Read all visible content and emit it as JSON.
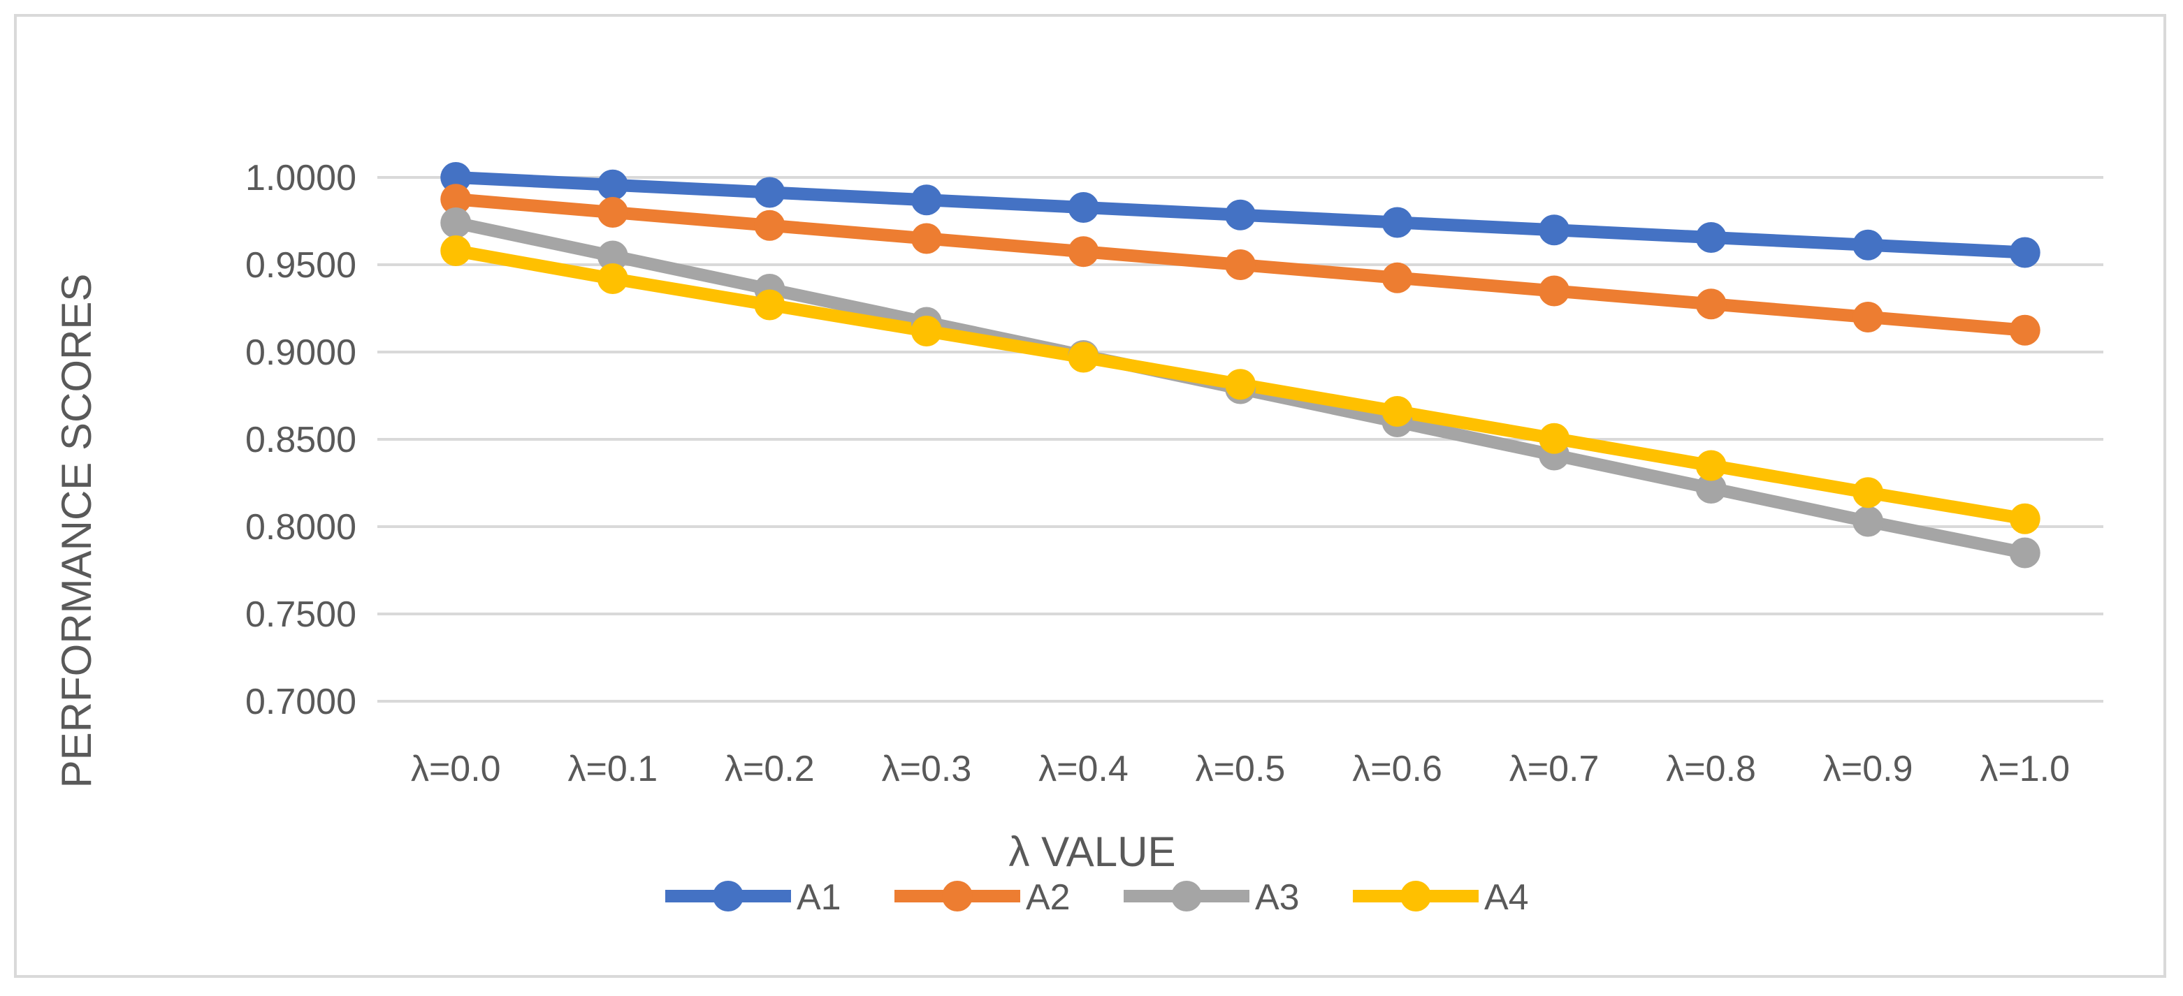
{
  "chart_data": {
    "type": "line",
    "title": "",
    "xlabel": "λ VALUE",
    "ylabel": "PERFORMANCE SCORES",
    "ylim": [
      0.7,
      1.0
    ],
    "yticks": [
      "0.7000",
      "0.7500",
      "0.8000",
      "0.8500",
      "0.9000",
      "0.9500",
      "1.0000"
    ],
    "ytick_values": [
      0.7,
      0.75,
      0.8,
      0.85,
      0.9,
      0.95,
      1.0
    ],
    "grid": true,
    "legend_position": "bottom",
    "categories": [
      "λ=0.0",
      "λ=0.1",
      "λ=0.2",
      "λ=0.3",
      "λ=0.4",
      "λ=0.5",
      "λ=0.6",
      "λ=0.7",
      "λ=0.8",
      "λ=0.9",
      "λ=1.0"
    ],
    "series": [
      {
        "name": "A1",
        "color": "#4472C4",
        "values": [
          1.0,
          0.9957,
          0.9914,
          0.9871,
          0.9828,
          0.9785,
          0.9742,
          0.9699,
          0.9656,
          0.9613,
          0.957
        ]
      },
      {
        "name": "A2",
        "color": "#ED7D31",
        "values": [
          0.9875,
          0.98,
          0.9725,
          0.965,
          0.9575,
          0.95,
          0.9425,
          0.935,
          0.9275,
          0.92,
          0.9125
        ]
      },
      {
        "name": "A3",
        "color": "#A5A5A5",
        "values": [
          0.974,
          0.955,
          0.936,
          0.917,
          0.898,
          0.879,
          0.86,
          0.841,
          0.822,
          0.803,
          0.785
        ]
      },
      {
        "name": "A4",
        "color": "#FFC000",
        "values": [
          0.958,
          0.942,
          0.927,
          0.912,
          0.897,
          0.8815,
          0.866,
          0.8505,
          0.835,
          0.8195,
          0.8045
        ]
      }
    ]
  }
}
